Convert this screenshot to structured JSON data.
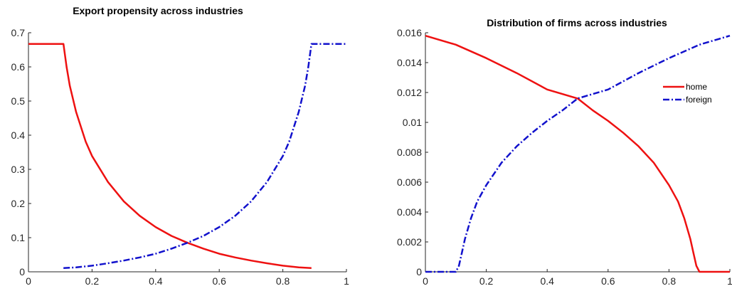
{
  "chart_data": [
    {
      "type": "line",
      "title": "Export propensity across industries",
      "xlabel": "",
      "ylabel": "",
      "xlim": [
        0,
        1
      ],
      "ylim": [
        0,
        0.7
      ],
      "xticks": [
        "0",
        "0.2",
        "0.4",
        "0.6",
        "0.8",
        "1"
      ],
      "yticks": [
        "0",
        "0.1",
        "0.2",
        "0.3",
        "0.4",
        "0.5",
        "0.6",
        "0.7"
      ],
      "grid": false,
      "series": [
        {
          "color": "#ee1111",
          "style": "solid",
          "x": [
            0,
            0.11,
            0.12,
            0.13,
            0.15,
            0.18,
            0.2,
            0.25,
            0.3,
            0.35,
            0.4,
            0.45,
            0.5,
            0.55,
            0.6,
            0.65,
            0.7,
            0.75,
            0.8,
            0.85,
            0.89
          ],
          "y": [
            0.667,
            0.667,
            0.6,
            0.545,
            0.468,
            0.381,
            0.339,
            0.263,
            0.206,
            0.164,
            0.131,
            0.105,
            0.085,
            0.068,
            0.053,
            0.042,
            0.033,
            0.025,
            0.018,
            0.013,
            0.011
          ]
        },
        {
          "color": "#1111cc",
          "style": "dashdot",
          "x": [
            0.11,
            0.15,
            0.2,
            0.25,
            0.3,
            0.35,
            0.4,
            0.45,
            0.5,
            0.55,
            0.6,
            0.65,
            0.7,
            0.75,
            0.8,
            0.82,
            0.85,
            0.87,
            0.88,
            0.89,
            1
          ],
          "y": [
            0.011,
            0.013,
            0.018,
            0.025,
            0.033,
            0.042,
            0.053,
            0.068,
            0.085,
            0.105,
            0.131,
            0.164,
            0.206,
            0.263,
            0.339,
            0.381,
            0.468,
            0.545,
            0.6,
            0.667,
            0.667
          ]
        }
      ]
    },
    {
      "type": "line",
      "title": "Distribution of firms across industries",
      "xlabel": "",
      "ylabel": "",
      "xlim": [
        0,
        1
      ],
      "ylim": [
        0,
        0.016
      ],
      "xticks": [
        "0",
        "0.2",
        "0.4",
        "0.6",
        "0.8",
        "1"
      ],
      "yticks": [
        "0",
        "0.002",
        "0.004",
        "0.006",
        "0.008",
        "0.01",
        "0.012",
        "0.014",
        "0.016"
      ],
      "grid": false,
      "legend": {
        "position": "right",
        "entries": [
          "home",
          "foreign"
        ]
      },
      "series": [
        {
          "name": "home",
          "color": "#ee1111",
          "style": "solid",
          "x": [
            0,
            0.1,
            0.2,
            0.3,
            0.4,
            0.5,
            0.55,
            0.6,
            0.65,
            0.7,
            0.75,
            0.8,
            0.83,
            0.85,
            0.87,
            0.88,
            0.89,
            0.9,
            1
          ],
          "y": [
            0.0158,
            0.0152,
            0.0143,
            0.0133,
            0.0122,
            0.0116,
            0.0108,
            0.0101,
            0.0093,
            0.0084,
            0.0073,
            0.0058,
            0.0047,
            0.0036,
            0.0022,
            0.0013,
            0.0004,
            0,
            0
          ]
        },
        {
          "name": "foreign",
          "color": "#1111cc",
          "style": "dashdot",
          "x": [
            0,
            0.1,
            0.11,
            0.12,
            0.13,
            0.15,
            0.17,
            0.2,
            0.25,
            0.3,
            0.35,
            0.4,
            0.45,
            0.5,
            0.6,
            0.7,
            0.8,
            0.9,
            1
          ],
          "y": [
            0,
            0,
            0.0004,
            0.0013,
            0.0022,
            0.0036,
            0.0047,
            0.0058,
            0.0073,
            0.0084,
            0.0093,
            0.0101,
            0.0108,
            0.0116,
            0.0122,
            0.0133,
            0.0143,
            0.0152,
            0.0158
          ]
        }
      ]
    }
  ]
}
